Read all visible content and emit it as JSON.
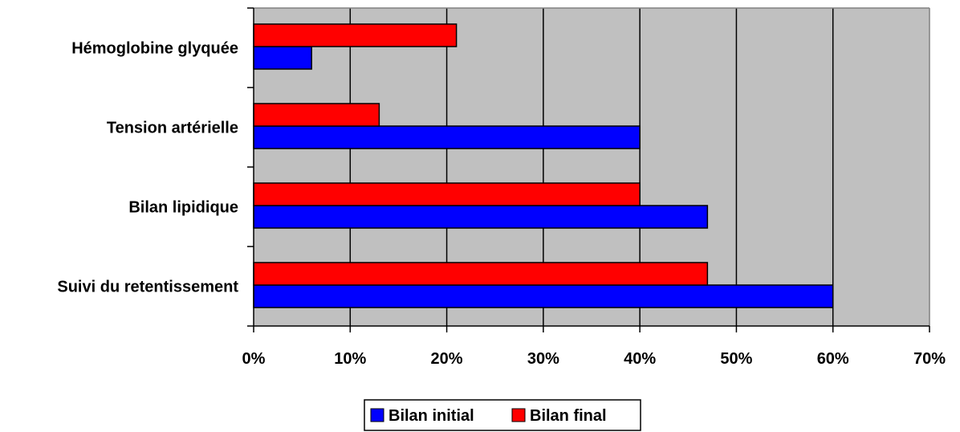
{
  "chart_data": {
    "type": "bar",
    "orientation": "horizontal",
    "categories": [
      "Suivi du retentissement",
      "Bilan lipidique",
      "Tension artérielle",
      "Hémoglobine glyquée"
    ],
    "series": [
      {
        "name": "Bilan initial",
        "color": "#0000ff",
        "values": [
          60,
          47,
          40,
          6
        ]
      },
      {
        "name": "Bilan final",
        "color": "#ff0000",
        "values": [
          47,
          40,
          13,
          21
        ]
      }
    ],
    "xlim": [
      0,
      70
    ],
    "x_ticks": [
      0,
      10,
      20,
      30,
      40,
      50,
      60,
      70
    ],
    "x_tick_labels": [
      "0%",
      "10%",
      "20%",
      "30%",
      "40%",
      "50%",
      "60%",
      "70%"
    ],
    "grid": "vertical major gridlines",
    "plot_background": "#c0c0c0",
    "legend_placement": "bottom-center",
    "title": "",
    "xlabel": "",
    "ylabel": ""
  }
}
